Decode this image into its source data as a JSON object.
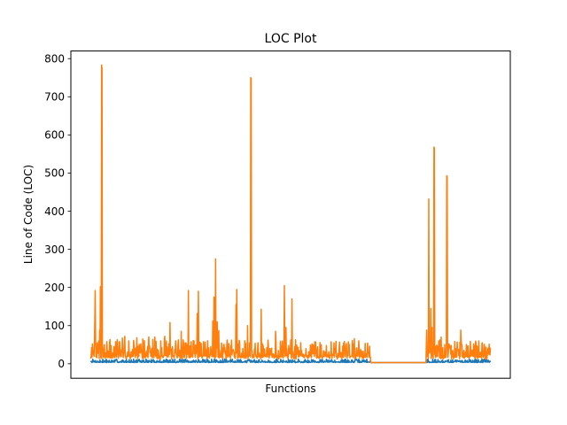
{
  "chart_data": {
    "type": "line",
    "title": "LOC Plot",
    "xlabel": "Functions",
    "ylabel": "Line of Code (LOC)",
    "ylim": [
      -38,
      820
    ],
    "yticks": [
      0,
      100,
      200,
      300,
      400,
      500,
      600,
      700,
      800
    ],
    "xticks_visible": false,
    "grid": false,
    "x_count": 1000,
    "series": [
      {
        "color": "#1f77b4",
        "baseline": 3,
        "noise": 4,
        "seed": 7,
        "spikes": [
          [
            30,
            12
          ],
          [
            120,
            10
          ],
          [
            210,
            12
          ],
          [
            330,
            14
          ],
          [
            420,
            9
          ],
          [
            560,
            8
          ],
          [
            840,
            10
          ],
          [
            900,
            9
          ]
        ],
        "flat_segments": [
          [
            700,
            840,
            3
          ]
        ]
      },
      {
        "color": "#ff7f0e",
        "baseline": 12,
        "noise": 22,
        "seed": 42,
        "spikes": [
          [
            2,
            42
          ],
          [
            5,
            36
          ],
          [
            10,
            112
          ],
          [
            11,
            192
          ],
          [
            16,
            55
          ],
          [
            20,
            60
          ],
          [
            22,
            88
          ],
          [
            24,
            202
          ],
          [
            27,
            783
          ],
          [
            28,
            775
          ],
          [
            34,
            50
          ],
          [
            40,
            58
          ],
          [
            47,
            56
          ],
          [
            58,
            45
          ],
          [
            72,
            58
          ],
          [
            85,
            72
          ],
          [
            95,
            60
          ],
          [
            115,
            68
          ],
          [
            130,
            65
          ],
          [
            145,
            70
          ],
          [
            160,
            70
          ],
          [
            175,
            60
          ],
          [
            185,
            72
          ],
          [
            198,
            108
          ],
          [
            212,
            60
          ],
          [
            226,
            85
          ],
          [
            236,
            55
          ],
          [
            244,
            192
          ],
          [
            258,
            60
          ],
          [
            266,
            132
          ],
          [
            269,
            190
          ],
          [
            282,
            58
          ],
          [
            300,
            45
          ],
          [
            305,
            112
          ],
          [
            308,
            175
          ],
          [
            309,
            172
          ],
          [
            312,
            275
          ],
          [
            316,
            110
          ],
          [
            320,
            87
          ],
          [
            328,
            48
          ],
          [
            340,
            50
          ],
          [
            352,
            62
          ],
          [
            363,
            155
          ],
          [
            365,
            195
          ],
          [
            372,
            58
          ],
          [
            380,
            40
          ],
          [
            392,
            100
          ],
          [
            397,
            55
          ],
          [
            400,
            750
          ],
          [
            401,
            748
          ],
          [
            410,
            35
          ],
          [
            418,
            55
          ],
          [
            426,
            143
          ],
          [
            440,
            42
          ],
          [
            448,
            40
          ],
          [
            462,
            85
          ],
          [
            475,
            50
          ],
          [
            484,
            205
          ],
          [
            488,
            95
          ],
          [
            495,
            48
          ],
          [
            503,
            170
          ],
          [
            510,
            45
          ],
          [
            520,
            35
          ],
          [
            840,
            88
          ],
          [
            845,
            432
          ],
          [
            850,
            145
          ],
          [
            853,
            95
          ],
          [
            858,
            568
          ],
          [
            859,
            565
          ],
          [
            863,
            45
          ],
          [
            870,
            60
          ],
          [
            876,
            70
          ],
          [
            880,
            42
          ],
          [
            885,
            50
          ],
          [
            890,
            493
          ],
          [
            891,
            490
          ],
          [
            898,
            40
          ],
          [
            905,
            35
          ],
          [
            918,
            38
          ],
          [
            925,
            88
          ],
          [
            940,
            40
          ],
          [
            955,
            20
          ],
          [
            975,
            18
          ],
          [
            990,
            12
          ]
        ],
        "flat_segments": [
          [
            700,
            838,
            3
          ]
        ]
      }
    ]
  }
}
